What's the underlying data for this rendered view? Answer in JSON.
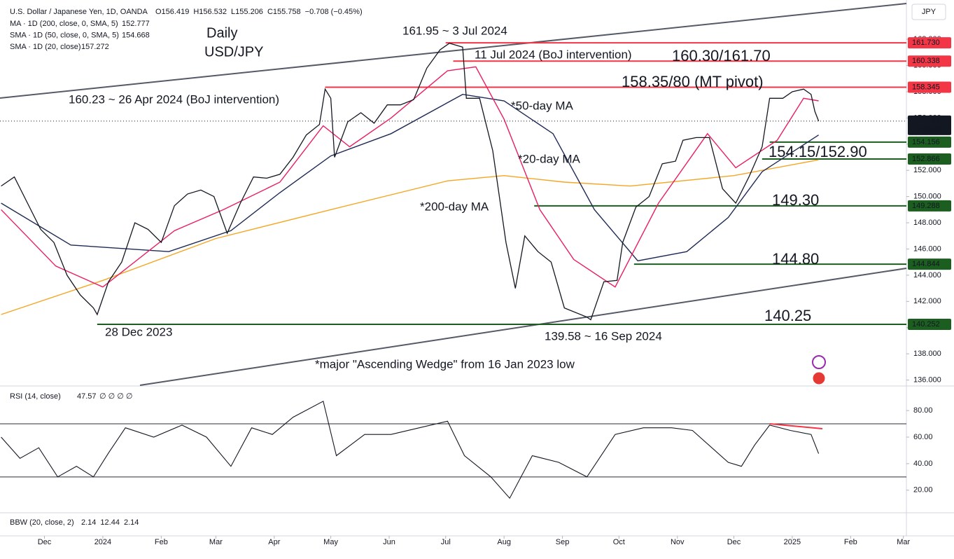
{
  "chart_data": [
    {
      "type": "line",
      "title": "U.S. Dollar / Japanese Yen, 1D, OANDA",
      "quote": [
        "O156.419",
        "H156.532",
        "L155.206",
        "C155.758",
        "−0.708 (−0.45%)"
      ],
      "currency": "JPY",
      "xlim": [
        -54.6,
        426.6
      ],
      "xticks": [
        {
          "value": -31,
          "label": "Dec"
        },
        {
          "value": 0,
          "label": "2024"
        },
        {
          "value": 31,
          "label": "Feb"
        },
        {
          "value": 60,
          "label": "Mar"
        },
        {
          "value": 91,
          "label": "Apr"
        },
        {
          "value": 121,
          "label": "May"
        },
        {
          "value": 152,
          "label": "Jun"
        },
        {
          "value": 182,
          "label": "Jul"
        },
        {
          "value": 213,
          "label": "Aug"
        },
        {
          "value": 244,
          "label": "Sep"
        },
        {
          "value": 274,
          "label": "Oct"
        },
        {
          "value": 305,
          "label": "Nov"
        },
        {
          "value": 335,
          "label": "Dec"
        },
        {
          "value": 366,
          "label": "2025"
        },
        {
          "value": 397,
          "label": "Feb"
        },
        {
          "value": 425,
          "label": "Mar"
        }
      ],
      "ylim": [
        135.6,
        165
      ],
      "yticks": [
        {
          "value": 136,
          "label": "136.000"
        },
        {
          "value": 138,
          "label": "138.000"
        },
        {
          "value": 140,
          "label": "140.000"
        },
        {
          "value": 142,
          "label": "142.000"
        },
        {
          "value": 144,
          "label": "144.000"
        },
        {
          "value": 146,
          "label": "146.000"
        },
        {
          "value": 148,
          "label": "148.000"
        },
        {
          "value": 150,
          "label": "150.000"
        },
        {
          "value": 152,
          "label": "152.000"
        },
        {
          "value": 154,
          "label": "154.000"
        },
        {
          "value": 156,
          "label": "156.000"
        },
        {
          "value": 158,
          "label": "158.000"
        },
        {
          "value": 160,
          "label": "160.000"
        },
        {
          "value": 162,
          "label": "162.000"
        }
      ],
      "grid": false,
      "price": {
        "color": "#131722",
        "x": [
          -54,
          -47,
          -40,
          -33,
          -26,
          -19,
          -12,
          -5,
          -3,
          3,
          10,
          17,
          24,
          31,
          38,
          45,
          52,
          59,
          66,
          73,
          80,
          87,
          94,
          101,
          108,
          115,
          118,
          121,
          123,
          130,
          137,
          144,
          151,
          158,
          165,
          172,
          179,
          184,
          191,
          193,
          200,
          207,
          214,
          219,
          224,
          231,
          238,
          245,
          257,
          259,
          266,
          273,
          276,
          283,
          290,
          297,
          304,
          308,
          315,
          322,
          329,
          336,
          343,
          350,
          354,
          361,
          366,
          372,
          376,
          378,
          380
        ],
        "values": [
          150.8,
          151.5,
          149.5,
          147.5,
          146.5,
          144,
          142.5,
          141.5,
          141,
          143.5,
          145,
          148,
          147.5,
          146.5,
          149.3,
          150.2,
          150.5,
          150,
          147.2,
          149.5,
          151.5,
          151.4,
          151.7,
          153,
          154.7,
          155.5,
          158.2,
          157.5,
          153,
          155.7,
          156.4,
          155.6,
          157,
          157,
          157.4,
          159.8,
          161.2,
          161.7,
          161.4,
          157.5,
          157.5,
          153.5,
          146.5,
          143,
          147,
          145.8,
          145,
          141.5,
          140.8,
          140.6,
          143.5,
          143.6,
          146.5,
          149.2,
          150,
          152.5,
          152.7,
          154.3,
          154.5,
          154.5,
          150.6,
          149.5,
          151.5,
          153.8,
          157.5,
          157.5,
          158,
          158.2,
          157.8,
          156.5,
          155.758
        ]
      },
      "series": [
        {
          "name": "MA · 1D (200, close, 0, SMA, 5)",
          "legend_value": "152.777",
          "color": "#f5a623",
          "x": [
            -54,
            0,
            60,
            121,
            183,
            213,
            245,
            280,
            335,
            380
          ],
          "values": [
            141,
            143.6,
            146.8,
            149,
            151.2,
            151.6,
            151.1,
            150.8,
            151.6,
            152.8
          ]
        },
        {
          "name": "SMA · 1D (50, close, 0, SMA, 5)",
          "legend_value": "154.668",
          "color": "#1e2a55",
          "x": [
            -54,
            -17,
            35,
            68,
            94,
            121,
            153,
            191,
            213,
            239,
            261,
            284,
            310,
            332,
            350,
            380
          ],
          "values": [
            149.5,
            146.3,
            145.8,
            147.4,
            150.3,
            153.1,
            154.8,
            157.8,
            157.3,
            154.8,
            149,
            145.1,
            145.8,
            148.4,
            151.9,
            154.7
          ]
        },
        {
          "name": "SMA · 1D (20, close)",
          "legend_value": "157.272",
          "color": "#e91e63",
          "x": [
            -54,
            -25,
            0,
            38,
            64,
            94,
            117,
            131,
            153,
            183,
            198,
            213,
            232,
            250,
            272,
            295,
            321,
            336,
            358,
            372,
            380
          ],
          "values": [
            149,
            144.7,
            143.1,
            147.4,
            149,
            151.1,
            155.4,
            153.8,
            156,
            159.6,
            159.9,
            155.9,
            149,
            145.2,
            143.1,
            149.5,
            154.8,
            152.2,
            154.3,
            157.5,
            157.3
          ]
        }
      ],
      "levels": [
        {
          "value": 161.73,
          "label": "161.730",
          "color": "#f23645",
          "start": 182
        },
        {
          "value": 160.338,
          "label": "160.338",
          "color": "#f23645",
          "start": 186
        },
        {
          "value": 158.345,
          "label": "158.345",
          "color": "#f23645",
          "start": 118
        },
        {
          "value": 155.758,
          "label": "155.758",
          "time_label": "12:08:46",
          "color": "#131722",
          "start": -54.6
        },
        {
          "value": 154.156,
          "label": "154.156",
          "color": "#1b5e20",
          "start": 354
        },
        {
          "value": 152.866,
          "label": "152.866",
          "color": "#1b5e20",
          "start": 350
        },
        {
          "value": 149.288,
          "label": "149.288",
          "color": "#1b5e20",
          "start": 229
        },
        {
          "value": 144.844,
          "label": "144.844",
          "color": "#1b5e20",
          "start": 282
        },
        {
          "value": 140.252,
          "label": "140.252",
          "color": "#1b5e20",
          "start": -3
        }
      ],
      "annotations": [
        "Daily",
        "USD/JPY",
        "161.95 ~ 3 Jul 2024",
        "11 Jul 2024 (BoJ intervention)",
        "160.30/161.70",
        "158.35/80 (MT pivot)",
        "160.23 ~ 26 Apr 2024 (BoJ intervention)",
        "*50-day MA",
        "*20-day MA",
        "*200-day MA",
        "154.15/152.90",
        "149.30",
        "144.80",
        "140.25",
        "28 Dec 2023",
        "139.58 ~ 16 Sep 2024",
        "*major \"Ascending Wedge\" from 16 Jan 2023 low"
      ]
    },
    {
      "type": "line",
      "title": "RSI (14, close)",
      "legend_values": [
        "47.57",
        "∅ ∅ ∅ ∅"
      ],
      "color": "#131722",
      "ylim": [
        3,
        98
      ],
      "yticks": [
        {
          "value": 80,
          "label": "80.00"
        },
        {
          "value": 60,
          "label": "60.00"
        },
        {
          "value": 40,
          "label": "40.00"
        },
        {
          "value": 20,
          "label": "20.00"
        }
      ],
      "hlines": [
        70,
        30
      ],
      "x": [
        -54,
        -44,
        -34,
        -24,
        -14,
        -5,
        3,
        12,
        27,
        42,
        55,
        68,
        79,
        90,
        101,
        117,
        124,
        139,
        153,
        168,
        183,
        192,
        206,
        216,
        228,
        242,
        257,
        272,
        287,
        302,
        313,
        332,
        339,
        346,
        354,
        365,
        376,
        380
      ],
      "values": [
        60,
        44,
        52,
        30,
        38,
        30,
        48,
        67,
        60,
        69,
        60,
        38,
        67,
        62,
        75,
        87,
        46,
        62,
        62,
        67,
        72,
        46,
        30,
        14,
        46,
        41,
        30,
        62,
        67,
        67,
        65,
        41,
        38,
        54,
        69,
        65,
        62,
        47.57
      ]
    }
  ],
  "bbw_panel": {
    "title": "BBW (20, close, 2)",
    "values": [
      "2.14",
      "12.44",
      "2.14"
    ]
  }
}
